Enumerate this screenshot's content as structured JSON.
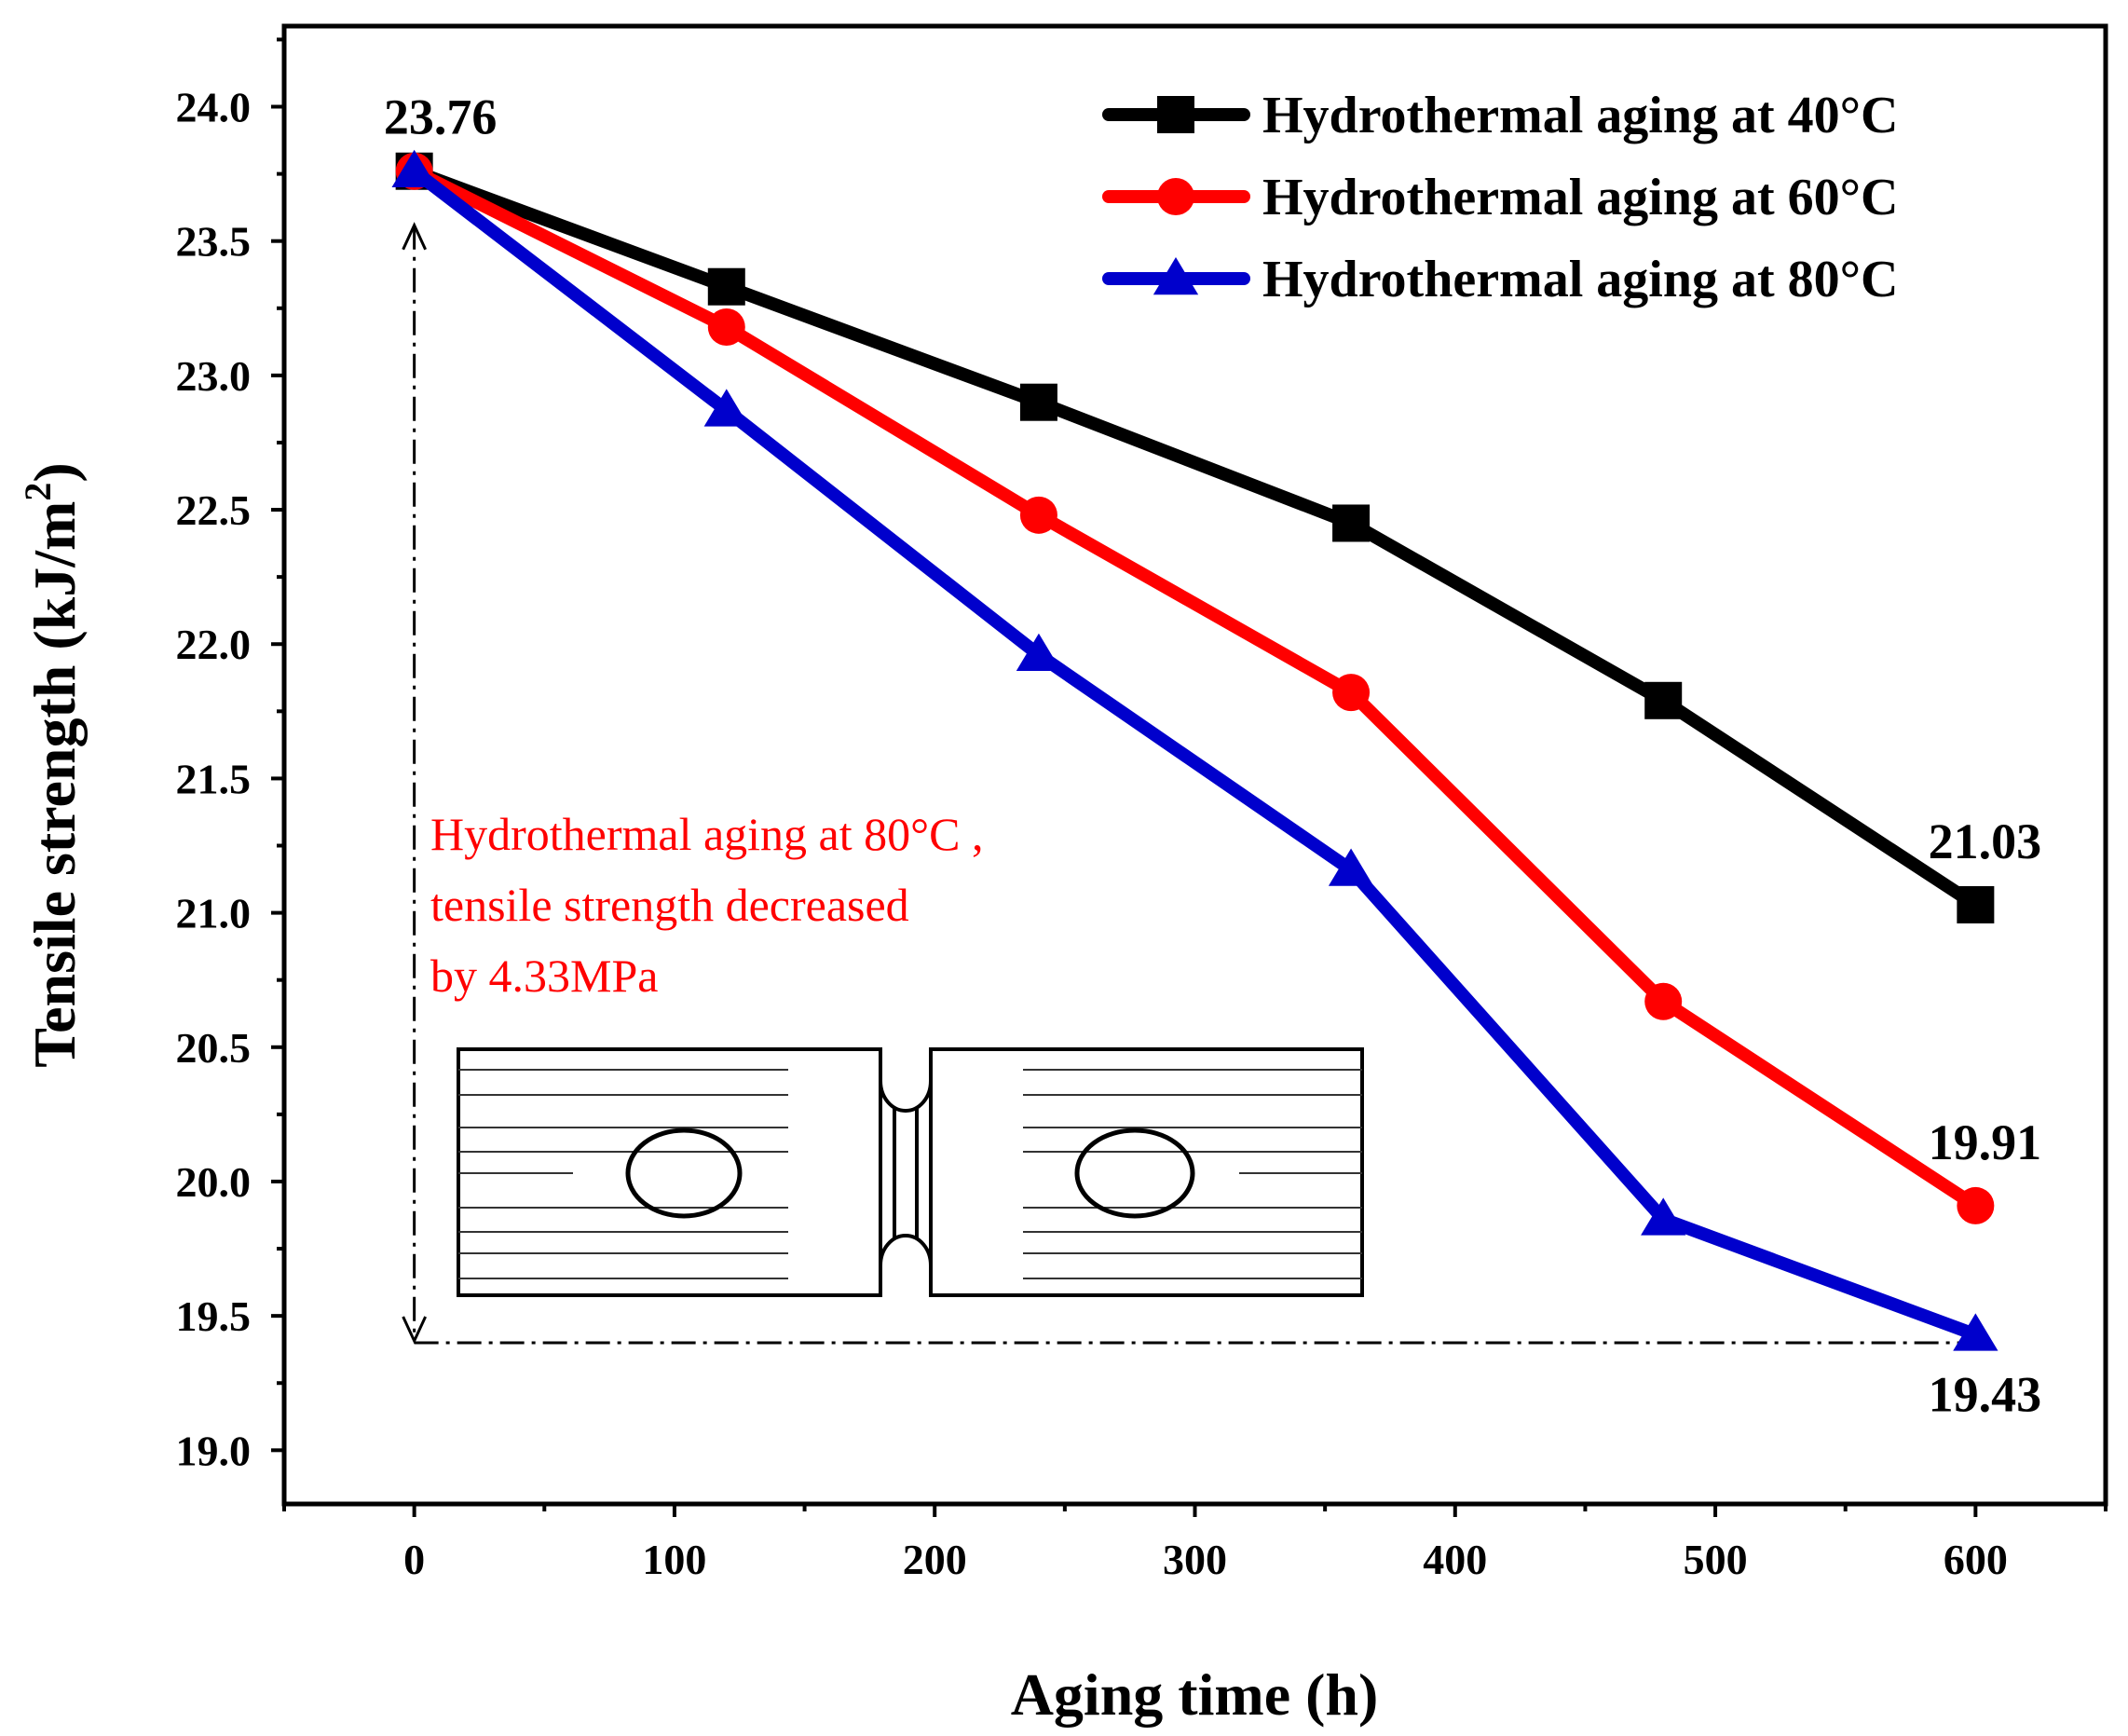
{
  "chart_data": {
    "type": "line",
    "xlabel": "Aging time (h)",
    "ylabel_main": "Tensile strength (kJ/m",
    "ylabel_sup": "2",
    "ylabel_end": ")",
    "xlim": [
      -50,
      650
    ],
    "ylim": [
      18.8,
      24.3
    ],
    "x_ticks": [
      0,
      100,
      200,
      300,
      400,
      500,
      600
    ],
    "x_tick_labels": [
      "0",
      "100",
      "200",
      "300",
      "400",
      "500",
      "600"
    ],
    "x_minor_ticks": [
      -50,
      50,
      150,
      250,
      350,
      450,
      550,
      650
    ],
    "y_ticks": [
      19.0,
      19.5,
      20.0,
      20.5,
      21.0,
      21.5,
      22.0,
      22.5,
      23.0,
      23.5,
      24.0
    ],
    "y_tick_labels": [
      "19.0",
      "19.5",
      "20.0",
      "20.5",
      "21.0",
      "21.5",
      "22.0",
      "22.5",
      "23.0",
      "23.5",
      "24.0"
    ],
    "y_minor_ticks": [
      19.25,
      19.75,
      20.25,
      20.75,
      21.25,
      21.75,
      22.25,
      22.75,
      23.25,
      23.75,
      24.25
    ],
    "x": [
      0,
      120,
      240,
      360,
      480,
      600
    ],
    "series": [
      {
        "name": "Hydrothermal aging at 40°C",
        "color": "#000000",
        "marker": "square",
        "values": [
          23.76,
          23.33,
          22.9,
          22.45,
          21.79,
          21.03
        ]
      },
      {
        "name": "Hydrothermal aging at 60°C",
        "color": "#ff0000",
        "marker": "circle",
        "values": [
          23.76,
          23.18,
          22.48,
          21.82,
          20.67,
          19.91
        ]
      },
      {
        "name": "Hydrothermal aging at 80°C",
        "color": "#0000cc",
        "marker": "triangle",
        "values": [
          23.76,
          22.87,
          21.96,
          21.16,
          19.86,
          19.43
        ]
      }
    ],
    "data_labels": [
      {
        "text": "23.76",
        "x": 0,
        "y": 23.76,
        "placement": "above"
      },
      {
        "text": "21.03",
        "x": 600,
        "y": 21.03,
        "placement": "above"
      },
      {
        "text": "19.91",
        "x": 600,
        "y": 19.91,
        "placement": "above"
      },
      {
        "text": "19.43",
        "x": 600,
        "y": 19.43,
        "placement": "below"
      }
    ],
    "annotation": {
      "lines": [
        "Hydrothermal aging at 80°C ,",
        "tensile strength decreased",
        "by 4.33MPa"
      ],
      "color": "#ff0000"
    },
    "guide_lines": {
      "vertical_x": 0,
      "y_from": 23.76,
      "y_to": 19.4,
      "horizontal_y": 19.4,
      "x_to": 600
    },
    "legend_position": "top-right",
    "grid": false
  }
}
